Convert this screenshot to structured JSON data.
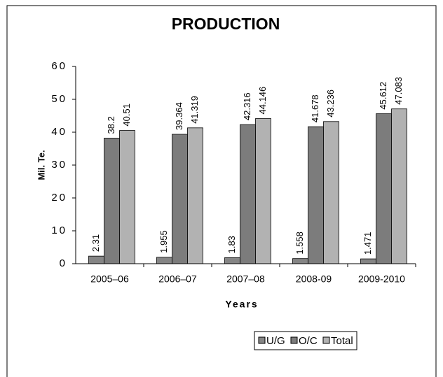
{
  "chart_data": {
    "type": "bar",
    "title": "PRODUCTION",
    "xlabel": "Years",
    "ylabel": "Mil. Te.",
    "categories": [
      "2005–06",
      "2006–07",
      "2007–08",
      "2008-09",
      "2009-2010"
    ],
    "series": [
      {
        "name": "U/G",
        "color": "#858585",
        "values": [
          2.31,
          1.955,
          1.83,
          1.558,
          1.471
        ]
      },
      {
        "name": "O/C",
        "color": "#7c7c7c",
        "values": [
          38.2,
          39.364,
          42.316,
          41.678,
          45.612
        ]
      },
      {
        "name": "Total",
        "color": "#b2b2b2",
        "values": [
          40.51,
          41.319,
          44.146,
          43.236,
          47.083
        ]
      }
    ],
    "ylim": [
      0,
      60
    ],
    "yticks": [
      0,
      10,
      20,
      30,
      40,
      50,
      60
    ],
    "legend": "bottom"
  }
}
